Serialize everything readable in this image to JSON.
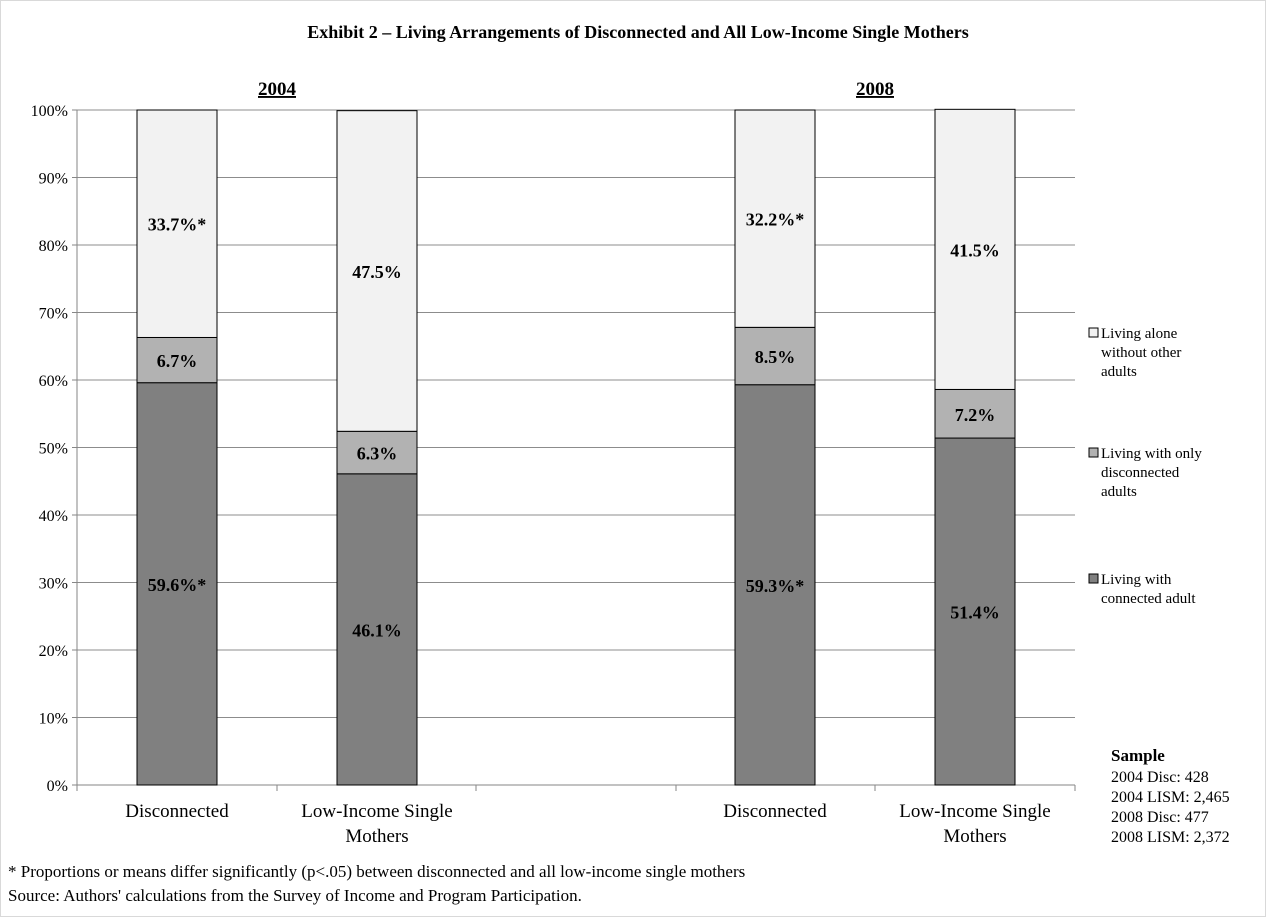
{
  "chart_data": {
    "type": "bar",
    "stacked": true,
    "title": "Exhibit 2 – Living Arrangements of Disconnected and All Low-Income Single Mothers",
    "groups": [
      {
        "label": "2004",
        "categories": [
          "Disconnected",
          "Low-Income Single Mothers"
        ]
      },
      {
        "label": "2008",
        "categories": [
          "Disconnected",
          "Low-Income Single Mothers"
        ]
      }
    ],
    "categories": [
      "Disconnected",
      "Low-Income Single Mothers",
      "Disconnected",
      "Low-Income Single Mothers"
    ],
    "category_lines": [
      [
        "Disconnected"
      ],
      [
        "Low-Income Single",
        "Mothers"
      ],
      [
        "Disconnected"
      ],
      [
        "Low-Income Single",
        "Mothers"
      ]
    ],
    "series": [
      {
        "name": "Living with connected adult",
        "color": "#808080",
        "values": [
          59.6,
          46.1,
          59.3,
          51.4
        ],
        "labels": [
          "59.6%*",
          "46.1%",
          "59.3%*",
          "51.4%"
        ]
      },
      {
        "name": "Living with only disconnected adults",
        "color": "#b2b2b2",
        "values": [
          6.7,
          6.3,
          8.5,
          7.2
        ],
        "labels": [
          "6.7%",
          "6.3%",
          "8.5%",
          "7.2%"
        ]
      },
      {
        "name": "Living alone without other adults",
        "color": "#f2f2f2",
        "values": [
          33.7,
          47.5,
          32.2,
          41.5
        ],
        "labels": [
          "33.7%*",
          "47.5%",
          "32.2%*",
          "41.5%"
        ]
      }
    ],
    "legend": [
      {
        "lines": [
          "Living alone",
          "without other",
          "adults"
        ],
        "color": "#f2f2f2"
      },
      {
        "lines": [
          "Living with only",
          "disconnected",
          "adults"
        ],
        "color": "#b2b2b2"
      },
      {
        "lines": [
          "Living with",
          "connected adult"
        ],
        "color": "#808080"
      }
    ],
    "legend_position": "right",
    "ylim": [
      0,
      100
    ],
    "yticks": [
      "0%",
      "10%",
      "20%",
      "30%",
      "40%",
      "50%",
      "60%",
      "70%",
      "80%",
      "90%",
      "100%"
    ],
    "grid": true,
    "sample": {
      "title": "Sample",
      "lines": [
        "2004 Disc:  428",
        "2004 LISM: 2,465",
        "2008 Disc:  477",
        "2008 LISM: 2,372"
      ]
    }
  },
  "footnotes": {
    "significance": "* Proportions or means differ significantly (p<.05) between disconnected and all low-income single mothers",
    "source": "Source: Authors' calculations from the Survey of Income and Program Participation."
  }
}
